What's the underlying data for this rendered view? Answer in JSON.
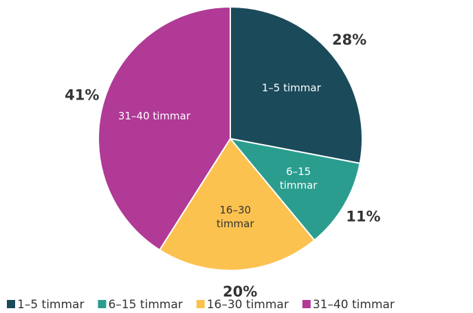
{
  "chart_data": {
    "type": "pie",
    "categories": [
      "1–5 timmar",
      "6–15 timmar",
      "16–30 timmar",
      "31–40 timmar"
    ],
    "values": [
      28,
      11,
      20,
      41
    ],
    "value_labels": [
      "28%",
      "11%",
      "20%",
      "41%"
    ],
    "colors": [
      "#1b4a5a",
      "#2a9d8f",
      "#fcc250",
      "#b03a96"
    ],
    "legend": "bottom"
  }
}
